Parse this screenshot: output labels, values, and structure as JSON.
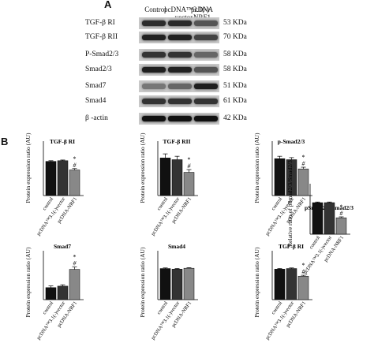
{
  "panel_a": {
    "letter": "A",
    "lane_headers": [
      "Control",
      "pcDNA™3.1(-)\nvector",
      "pcDNA\nNRF1"
    ],
    "blots": [
      {
        "label": "TGF-β RI",
        "size": "53 KDa"
      },
      {
        "label": "TGF-β RII",
        "size": "70 KDa"
      },
      {
        "label": "P-Smad2/3",
        "size": "58 KDa"
      },
      {
        "label": "Smad2/3",
        "size": "58 KDa"
      },
      {
        "label": "Smad7",
        "size": "51 KDa"
      },
      {
        "label": "Smad4",
        "size": "61 KDa"
      },
      {
        "label": "β -actin",
        "size": "42 KDa"
      }
    ]
  },
  "panel_b": {
    "letter": "B"
  },
  "categories": [
    "control",
    "pcDNA™3.1(-)vector",
    "pcDNA-NRF1"
  ],
  "ylabel_main": "Protein expression ratio (AU)",
  "ylabel_ratio": "Relative ratio of pSmad2/3/Smad2/3",
  "chart_data": [
    {
      "type": "bar",
      "title": "TGF-β RI",
      "ylabel": "Protein expression ratio (AU)",
      "categories": [
        "control",
        "pcDNA™3.1(-)vector",
        "pcDNA-NRF1"
      ],
      "values": [
        1.0,
        1.02,
        0.75
      ],
      "errors": [
        0.02,
        0.02,
        0.04
      ],
      "ylim": [
        0,
        1.5
      ],
      "annotations": [
        "*",
        "#"
      ]
    },
    {
      "type": "bar",
      "title": "TGF-β RII",
      "ylabel": "Protein expression ratio (AU)",
      "categories": [
        "control",
        "pcDNA™3.1(-)vector",
        "pcDNA-NRF1"
      ],
      "values": [
        1.1,
        1.05,
        0.68
      ],
      "errors": [
        0.12,
        0.1,
        0.08
      ],
      "ylim": [
        0,
        1.5
      ],
      "annotations": [
        "*",
        "#"
      ]
    },
    {
      "type": "bar",
      "title": "p-Smad2/3",
      "ylabel": "Protein expression ratio (AU)",
      "categories": [
        "control",
        "pcDNA™3.1(-)vector",
        "pcDNA-NRF1"
      ],
      "values": [
        1.08,
        1.05,
        0.78
      ],
      "errors": [
        0.07,
        0.06,
        0.05
      ],
      "ylim": [
        0,
        1.5
      ],
      "annotations": [
        "*",
        "#"
      ]
    },
    {
      "type": "bar",
      "title": "pSmad2/3/Smad2/3",
      "ylabel": "Relative ratio of pSmad2/3/Smad2/3",
      "categories": [
        "control",
        "pcDNA™3.1(-)vector",
        "pcDNA-NRF1"
      ],
      "values": [
        1.0,
        1.0,
        0.52
      ],
      "errors": [
        0.02,
        0.02,
        0.03
      ],
      "ylim": [
        0,
        1.5
      ],
      "annotations": [
        "*",
        "#"
      ]
    },
    {
      "type": "bar",
      "title": "Smad7",
      "ylabel": "Protein expression ratio (AU)",
      "categories": [
        "control",
        "pcDNA™3.1(-)vector",
        "pcDNA-NRF1"
      ],
      "values": [
        1.05,
        1.18,
        2.65
      ],
      "errors": [
        0.15,
        0.12,
        0.2
      ],
      "ylim": [
        0,
        4
      ],
      "annotations": [
        "*",
        "#"
      ]
    },
    {
      "type": "bar",
      "title": "Smad4",
      "ylabel": "Protein expression ratio (AU)",
      "categories": [
        "control",
        "pcDNA™3.1(-)vector",
        "pcDNA-NRF1"
      ],
      "values": [
        1.02,
        1.0,
        1.03
      ],
      "errors": [
        0.02,
        0.02,
        0.02
      ],
      "ylim": [
        0,
        1.5
      ],
      "annotations": []
    },
    {
      "type": "bar",
      "title": "TGF-β RI",
      "ylabel": "Protein expression ratio (AU)",
      "categories": [
        "control",
        "pcDNA™3.1(-)vector",
        "pcDNA-NRF1"
      ],
      "values": [
        1.0,
        1.02,
        0.77
      ],
      "errors": [
        0.02,
        0.02,
        0.03
      ],
      "ylim": [
        0,
        1.5
      ],
      "annotations": [
        "*",
        "#"
      ]
    }
  ]
}
